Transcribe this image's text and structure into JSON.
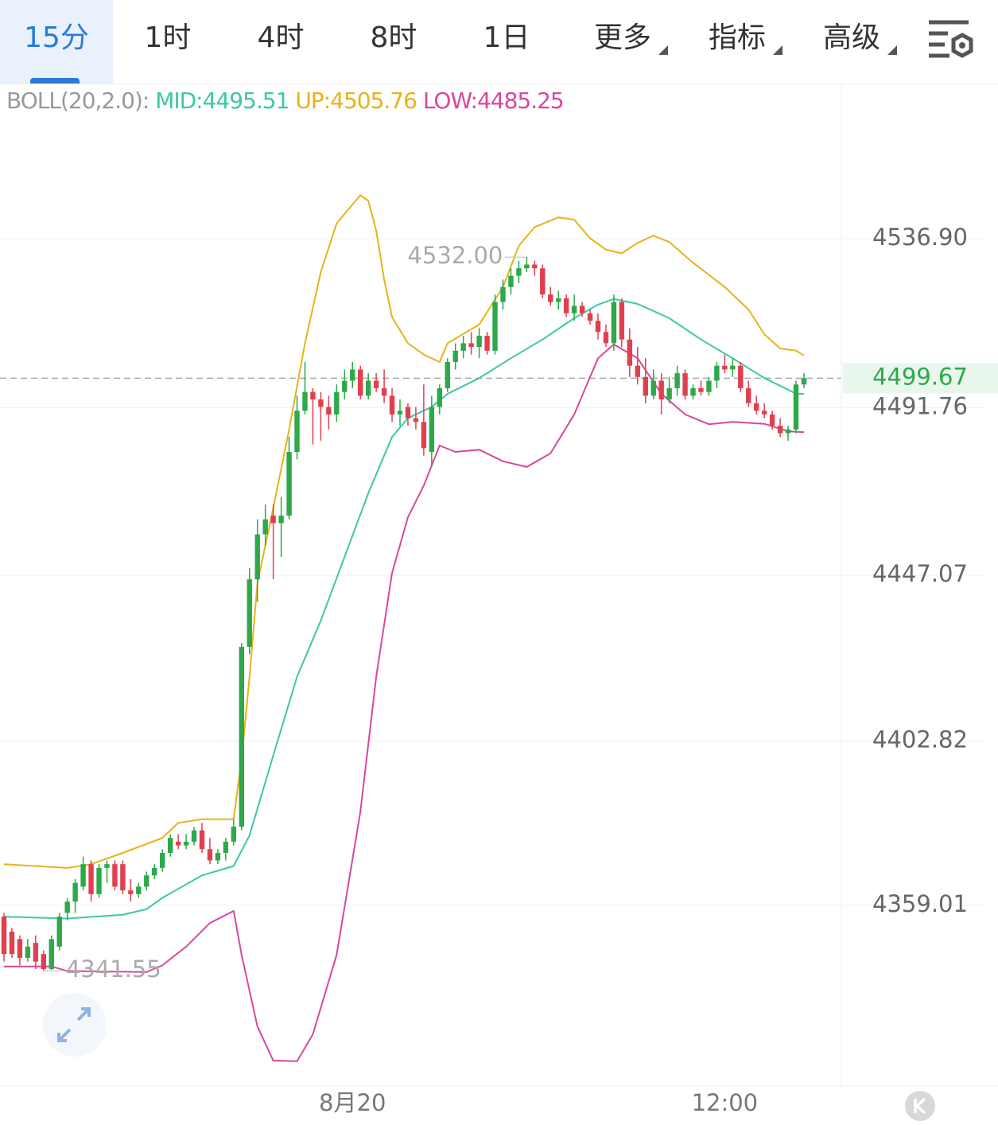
{
  "tabs": [
    "15分",
    "1时",
    "4时",
    "8时",
    "1日",
    "更多",
    "指标",
    "高级"
  ],
  "boll": {
    "name": "BOLL(20,2.0):",
    "mid": "MID:4495.51",
    "up": "UP:4505.76",
    "low": "LOW:4485.25"
  },
  "chart_data": {
    "type": "candlestick",
    "categories": [
      null,
      null,
      null,
      null,
      null,
      null,
      null,
      null,
      null,
      null,
      null,
      null,
      null,
      null,
      null,
      null,
      null,
      null,
      null,
      null,
      null,
      null,
      null,
      null,
      null,
      null,
      null,
      null,
      null,
      null,
      null,
      null,
      null,
      null,
      null,
      null,
      null,
      null,
      null,
      null,
      null,
      null,
      null,
      null,
      "8月20",
      null,
      null,
      null,
      null,
      null,
      null,
      null,
      null,
      null,
      null,
      null,
      null,
      null,
      null,
      null,
      null,
      null,
      null,
      null,
      null,
      null,
      null,
      null,
      null,
      null,
      null,
      null,
      null,
      null,
      null,
      null,
      null,
      null,
      null,
      null,
      null,
      null,
      null,
      null,
      null,
      null,
      null,
      null,
      null,
      null,
      null,
      "12:00",
      null,
      null,
      null,
      null,
      null,
      null,
      null,
      null,
      null
    ],
    "candles": [
      [
        4356,
        4357,
        4344,
        4346
      ],
      [
        4352,
        4353,
        4345,
        4346
      ],
      [
        4350,
        4351,
        4343,
        4345
      ],
      [
        4345,
        4350,
        4344,
        4348
      ],
      [
        4349,
        4351,
        4342,
        4344
      ],
      [
        4346,
        4347,
        4341.55,
        4342
      ],
      [
        4342,
        4351,
        4341.8,
        4350
      ],
      [
        4348,
        4357,
        4347,
        4356
      ],
      [
        4357,
        4361,
        4355,
        4360
      ],
      [
        4360,
        4366,
        4357,
        4365
      ],
      [
        4364,
        4372,
        4363,
        4370
      ],
      [
        4370,
        4371,
        4360,
        4362
      ],
      [
        4362,
        4370,
        4361,
        4369
      ],
      [
        4369,
        4371,
        4365,
        4370
      ],
      [
        4370,
        4371,
        4363,
        4364
      ],
      [
        4370,
        4371,
        4362,
        4363
      ],
      [
        4363,
        4366,
        4360,
        4362
      ],
      [
        4362,
        4365,
        4361,
        4364
      ],
      [
        4364,
        4368,
        4363,
        4367
      ],
      [
        4367,
        4370,
        4366,
        4369
      ],
      [
        4369,
        4374,
        4368,
        4373
      ],
      [
        4373,
        4378,
        4372,
        4377
      ],
      [
        4376,
        4378,
        4374,
        4375
      ],
      [
        4375,
        4378,
        4374,
        4376
      ],
      [
        4376,
        4380,
        4375,
        4379
      ],
      [
        4379,
        4381,
        4373,
        4374
      ],
      [
        4374,
        4377,
        4370,
        4371
      ],
      [
        4371,
        4374,
        4370,
        4373
      ],
      [
        4373,
        4377,
        4371,
        4376
      ],
      [
        4376,
        4382,
        4375,
        4380
      ],
      [
        4380,
        4429,
        4379,
        4428
      ],
      [
        4428,
        4449,
        4426,
        4446
      ],
      [
        4446,
        4462,
        4440,
        4458
      ],
      [
        4458,
        4466,
        4455,
        4462
      ],
      [
        4463,
        4466,
        4446,
        4461
      ],
      [
        4461,
        4468,
        4452,
        4463
      ],
      [
        4463,
        4484,
        4462,
        4480
      ],
      [
        4480,
        4495,
        4478,
        4491
      ],
      [
        4491,
        4504,
        4490,
        4496
      ],
      [
        4496,
        4497,
        4482,
        4494
      ],
      [
        4494,
        4496,
        4483,
        4492
      ],
      [
        4492,
        4495,
        4486,
        4490
      ],
      [
        4490,
        4498,
        4488,
        4496
      ],
      [
        4496,
        4502,
        4494,
        4499
      ],
      [
        4499,
        4504,
        4497,
        4502
      ],
      [
        4502,
        4503,
        4494,
        4495
      ],
      [
        4495,
        4501,
        4494,
        4499
      ],
      [
        4499,
        4501,
        4496,
        4497
      ],
      [
        4497,
        4502,
        4493,
        4495
      ],
      [
        4495,
        4497,
        4488,
        4490
      ],
      [
        4490,
        4494,
        4487,
        4491
      ],
      [
        4492,
        4493,
        4487,
        4489
      ],
      [
        4489,
        4492,
        4486,
        4488
      ],
      [
        4488,
        4498,
        4479,
        4481
      ],
      [
        4480,
        4495,
        4476,
        4492
      ],
      [
        4492,
        4498,
        4490,
        4497
      ],
      [
        4497,
        4505,
        4496,
        4504
      ],
      [
        4504,
        4509,
        4502,
        4507
      ],
      [
        4507,
        4511,
        4505,
        4509
      ],
      [
        4509,
        4512,
        4506,
        4508
      ],
      [
        4508,
        4513,
        4505,
        4511
      ],
      [
        4511,
        4512,
        4506,
        4507
      ],
      [
        4507,
        4522,
        4506,
        4520
      ],
      [
        4520,
        4526,
        4518,
        4524
      ],
      [
        4524,
        4529,
        4522,
        4527
      ],
      [
        4527,
        4531,
        4525,
        4529
      ],
      [
        4529,
        4532,
        4528,
        4530
      ],
      [
        4530,
        4531,
        4527,
        4529
      ],
      [
        4529,
        4530,
        4521,
        4522
      ],
      [
        4522,
        4524,
        4519,
        4520
      ],
      [
        4520,
        4523,
        4518,
        4521
      ],
      [
        4521,
        4522,
        4516,
        4517
      ],
      [
        4517,
        4522,
        4515,
        4519
      ],
      [
        4519,
        4520,
        4516,
        4517
      ],
      [
        4517,
        4518,
        4514,
        4515
      ],
      [
        4515,
        4517,
        4510,
        4512
      ],
      [
        4512,
        4514,
        4508,
        4509
      ],
      [
        4509,
        4522,
        4507,
        4520
      ],
      [
        4520,
        4521,
        4508,
        4510
      ],
      [
        4510,
        4513,
        4500,
        4503
      ],
      [
        4503,
        4508,
        4498,
        4500
      ],
      [
        4500,
        4505,
        4493,
        4495
      ],
      [
        4495,
        4502,
        4494,
        4499
      ],
      [
        4499,
        4501,
        4490,
        4494
      ],
      [
        4494,
        4500,
        4493,
        4497
      ],
      [
        4497,
        4503,
        4495,
        4501
      ],
      [
        4501,
        4502,
        4494,
        4495
      ],
      [
        4495,
        4498,
        4494,
        4497
      ],
      [
        4497,
        4499,
        4495,
        4496
      ],
      [
        4496,
        4500,
        4495,
        4499
      ],
      [
        4499,
        4504,
        4497,
        4503
      ],
      [
        4503,
        4506,
        4501,
        4502
      ],
      [
        4502,
        4505,
        4500,
        4503
      ],
      [
        4503,
        4504,
        4496,
        4497
      ],
      [
        4497,
        4499,
        4492,
        4493
      ],
      [
        4493,
        4495,
        4490,
        4491
      ],
      [
        4491,
        4493,
        4489,
        4490
      ],
      [
        4490,
        4491,
        4486,
        4487
      ],
      [
        4487,
        4489,
        4484,
        4485
      ],
      [
        4485,
        4487,
        4483,
        4486
      ],
      [
        4486,
        4499,
        4485,
        4498
      ],
      [
        4498,
        4501,
        4497,
        4499.67
      ]
    ],
    "up_color": "#2ea84a",
    "down_color": "#e0404e",
    "bands": [
      {
        "color": "#e8b21c",
        "x": [
          0,
          8,
          11,
          15,
          20,
          22,
          25,
          29,
          30,
          31,
          32,
          34,
          36,
          38,
          40,
          42,
          44,
          45,
          46,
          47,
          48,
          49,
          51,
          53,
          55,
          56,
          60,
          63,
          65,
          67,
          70,
          72,
          74,
          76,
          78,
          80,
          82,
          84,
          87,
          91,
          94,
          96,
          98,
          100,
          101
        ],
        "values": [
          4370,
          4369,
          4370,
          4373,
          4377,
          4381,
          4382,
          4382,
          4398,
          4420,
          4445,
          4465,
          4486,
          4509,
          4528,
          4541,
          4546,
          4548.5,
          4547,
          4539,
          4526,
          4516,
          4509,
          4506,
          4504,
          4509,
          4514,
          4524,
          4535,
          4540,
          4542.6,
          4542,
          4537,
          4534,
          4533,
          4535.8,
          4537.7,
          4536,
          4530.5,
          4524,
          4518,
          4511.4,
          4507.6,
          4507,
          4505.76
        ]
      },
      {
        "color": "#3cc8a6",
        "x": [
          0,
          8,
          15,
          18,
          20,
          25,
          29,
          31,
          34,
          37,
          40,
          43,
          46,
          49,
          51,
          54,
          56,
          60,
          64,
          68,
          72,
          75,
          77,
          80,
          84,
          88,
          92,
          96,
          99,
          100,
          101
        ],
        "values": [
          4356,
          4355.5,
          4356.5,
          4358,
          4361,
          4367,
          4369.5,
          4377.7,
          4399,
          4420,
          4435,
          4452,
          4469,
          4484,
          4489,
          4492,
          4495.5,
          4499.7,
          4505,
          4510,
          4515.7,
          4519.3,
          4520.8,
          4519.5,
          4515.7,
          4510,
          4505,
          4499.7,
          4496.6,
          4495.5,
          4495.51
        ]
      },
      {
        "color": "#d9479e",
        "x": [
          0,
          6,
          8,
          18,
          20,
          23,
          26,
          29,
          30,
          32,
          34,
          37,
          39,
          42,
          45,
          47,
          49,
          51,
          53,
          55,
          57,
          60,
          63,
          66,
          69,
          72,
          75,
          77,
          80,
          83,
          86,
          89,
          92,
          96,
          99,
          101
        ],
        "values": [
          4342.7,
          4342.7,
          4341.5,
          4341.2,
          4343,
          4348,
          4354.3,
          4357.5,
          4345.8,
          4326.7,
          4317.6,
          4317.4,
          4324.6,
          4345.8,
          4384,
          4420,
          4447.7,
          4462.6,
          4471,
          4481.7,
          4480,
          4480.6,
          4477.5,
          4476,
          4479.6,
          4490,
          4505,
          4508.7,
          4505,
          4495.5,
          4490,
          4487.4,
          4488,
          4487.5,
          4485.5,
          4485.25
        ]
      }
    ],
    "ylim": [
      4310.8,
      4578.3
    ],
    "yticks": [
      4359.01,
      4402.82,
      4447.07,
      4491.76,
      {
        "value": 4536.9,
        "label": "4536.90"
      }
    ],
    "last_price": 4499.67,
    "high_label": {
      "value": 4532,
      "label": "4532.00"
    },
    "low_label": 4341.55
  }
}
